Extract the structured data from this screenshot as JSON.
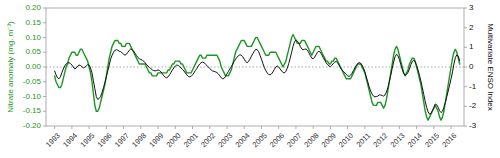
{
  "chart_data": {
    "type": "line",
    "ylabel": "Nitrate anomaly (mg. m⁻³)",
    "y2label": "Multivariate ENSO Index",
    "xlim": [
      1992.5,
      2016.75
    ],
    "xticks": [
      1993,
      1994,
      1995,
      1996,
      1997,
      1998,
      1999,
      2000,
      2001,
      2002,
      2003,
      2004,
      2005,
      2006,
      2007,
      2008,
      2009,
      2010,
      2011,
      2012,
      2013,
      2014,
      2015,
      2016
    ],
    "ylim": [
      -0.2,
      0.2
    ],
    "yticks": [
      {
        "value": -0.2,
        "label": "-0.20"
      },
      {
        "value": -0.15,
        "label": "-0.15"
      },
      {
        "value": -0.1,
        "label": "-0.10"
      },
      {
        "value": -0.05,
        "label": "-0.05"
      },
      {
        "value": 0.0,
        "label": "0.00"
      },
      {
        "value": 0.05,
        "label": "0.05"
      },
      {
        "value": 0.1,
        "label": "0.10"
      },
      {
        "value": 0.15,
        "label": "0.15"
      },
      {
        "value": 0.2,
        "label": "0.20"
      }
    ],
    "y2lim": [
      -3,
      3
    ],
    "y2ticks": [
      -3,
      -2,
      -1,
      0,
      1,
      2,
      3
    ],
    "grid": false,
    "hline": {
      "y": 0,
      "color": "#aaaaaa",
      "line_style": "dotted"
    },
    "x": [
      1993,
      1993.0833333333333,
      1993.1666666666667,
      1993.25,
      1993.3333333333333,
      1993.4166666666667,
      1993.5,
      1993.5833333333333,
      1993.6666666666667,
      1993.75,
      1993.8333333333333,
      1993.9166666666667,
      1994,
      1994.0833333333333,
      1994.1666666666667,
      1994.25,
      1994.3333333333333,
      1994.4166666666667,
      1994.5,
      1994.5833333333333,
      1994.6666666666667,
      1994.75,
      1994.8333333333333,
      1994.9166666666667,
      1995,
      1995.0833333333333,
      1995.1666666666667,
      1995.25,
      1995.3333333333333,
      1995.4166666666667,
      1995.5,
      1995.5833333333333,
      1995.6666666666667,
      1995.75,
      1995.8333333333333,
      1995.9166666666667,
      1996,
      1996.0833333333333,
      1996.1666666666667,
      1996.25,
      1996.3333333333333,
      1996.4166666666667,
      1996.5,
      1996.5833333333333,
      1996.6666666666667,
      1996.75,
      1996.8333333333333,
      1996.9166666666667,
      1997,
      1997.0833333333333,
      1997.1666666666667,
      1997.25,
      1997.3333333333333,
      1997.4166666666667,
      1997.5,
      1997.5833333333333,
      1997.6666666666667,
      1997.75,
      1997.8333333333333,
      1997.9166666666667,
      1998,
      1998.0833333333333,
      1998.1666666666667,
      1998.25,
      1998.3333333333333,
      1998.4166666666667,
      1998.5,
      1998.5833333333333,
      1998.6666666666667,
      1998.75,
      1998.8333333333333,
      1998.9166666666667,
      1999,
      1999.0833333333333,
      1999.1666666666667,
      1999.25,
      1999.3333333333333,
      1999.4166666666667,
      1999.5,
      1999.5833333333333,
      1999.6666666666667,
      1999.75,
      1999.8333333333333,
      1999.9166666666667,
      2000,
      2000.0833333333333,
      2000.1666666666667,
      2000.25,
      2000.3333333333333,
      2000.4166666666667,
      2000.5,
      2000.5833333333333,
      2000.6666666666667,
      2000.75,
      2000.8333333333333,
      2000.9166666666667,
      2001,
      2001.0833333333333,
      2001.1666666666667,
      2001.25,
      2001.3333333333333,
      2001.4166666666667,
      2001.5,
      2001.5833333333333,
      2001.6666666666667,
      2001.75,
      2001.8333333333333,
      2001.9166666666667,
      2002,
      2002.0833333333333,
      2002.1666666666667,
      2002.25,
      2002.3333333333333,
      2002.4166666666667,
      2002.5,
      2002.5833333333333,
      2002.6666666666667,
      2002.75,
      2002.8333333333333,
      2002.9166666666667,
      2003,
      2003.0833333333333,
      2003.1666666666667,
      2003.25,
      2003.3333333333333,
      2003.4166666666667,
      2003.5,
      2003.5833333333333,
      2003.6666666666667,
      2003.75,
      2003.8333333333333,
      2003.9166666666667,
      2004,
      2004.0833333333333,
      2004.1666666666667,
      2004.25,
      2004.3333333333333,
      2004.4166666666667,
      2004.5,
      2004.5833333333333,
      2004.6666666666667,
      2004.75,
      2004.8333333333333,
      2004.9166666666667,
      2005,
      2005.0833333333333,
      2005.1666666666667,
      2005.25,
      2005.3333333333333,
      2005.4166666666667,
      2005.5,
      2005.5833333333333,
      2005.6666666666667,
      2005.75,
      2005.8333333333333,
      2005.9166666666667,
      2006,
      2006.0833333333333,
      2006.1666666666667,
      2006.25,
      2006.3333333333333,
      2006.4166666666667,
      2006.5,
      2006.5833333333333,
      2006.6666666666667,
      2006.75,
      2006.8333333333333,
      2006.9166666666667,
      2007,
      2007.0833333333333,
      2007.1666666666667,
      2007.25,
      2007.3333333333333,
      2007.4166666666667,
      2007.5,
      2007.5833333333333,
      2007.6666666666667,
      2007.75,
      2007.8333333333333,
      2007.9166666666667,
      2008,
      2008.0833333333333,
      2008.1666666666667,
      2008.25,
      2008.3333333333333,
      2008.4166666666667,
      2008.5,
      2008.5833333333333,
      2008.6666666666667,
      2008.75,
      2008.8333333333333,
      2008.9166666666667,
      2009,
      2009.0833333333333,
      2009.1666666666667,
      2009.25,
      2009.3333333333333,
      2009.4166666666667,
      2009.5,
      2009.5833333333333,
      2009.6666666666667,
      2009.75,
      2009.8333333333333,
      2009.9166666666667,
      2010,
      2010.0833333333333,
      2010.1666666666667,
      2010.25,
      2010.3333333333333,
      2010.4166666666667,
      2010.5,
      2010.5833333333333,
      2010.6666666666667,
      2010.75,
      2010.8333333333333,
      2010.9166666666667,
      2011,
      2011.0833333333333,
      2011.1666666666667,
      2011.25,
      2011.3333333333333,
      2011.4166666666667,
      2011.5,
      2011.5833333333333,
      2011.6666666666667,
      2011.75,
      2011.8333333333333,
      2011.9166666666667,
      2012,
      2012.0833333333333,
      2012.1666666666667,
      2012.25,
      2012.3333333333333,
      2012.4166666666667,
      2012.5,
      2012.5833333333333,
      2012.6666666666667,
      2012.75,
      2012.8333333333333,
      2012.9166666666667,
      2013,
      2013.0833333333333,
      2013.1666666666667,
      2013.25,
      2013.3333333333333,
      2013.4166666666667,
      2013.5,
      2013.5833333333333,
      2013.6666666666667,
      2013.75,
      2013.8333333333333,
      2013.9166666666667,
      2014,
      2014.0833333333333,
      2014.1666666666667,
      2014.25,
      2014.3333333333333,
      2014.4166666666667,
      2014.5,
      2014.5833333333333,
      2014.6666666666667,
      2014.75,
      2014.8333333333333,
      2014.9166666666667,
      2015,
      2015.0833333333333,
      2015.1666666666667,
      2015.25,
      2015.3333333333333,
      2015.4166666666667,
      2015.5,
      2015.5833333333333,
      2015.6666666666667,
      2015.75,
      2015.8333333333333,
      2015.9166666666667,
      2016,
      2016.0833333333333,
      2016.1666666666667,
      2016.25,
      2016.3333333333333,
      2016.4166666666667,
      2016.5
    ],
    "series": [
      {
        "color": "#1a9622",
        "values": [
          -0.03,
          -0.05,
          -0.06,
          -0.07,
          -0.07,
          -0.06,
          -0.04,
          -0.02,
          0.0,
          0.01,
          0.03,
          0.04,
          0.05,
          0.05,
          0.05,
          0.04,
          0.04,
          0.05,
          0.06,
          0.06,
          0.05,
          0.04,
          0.03,
          0.02,
          0.0,
          -0.02,
          -0.05,
          -0.09,
          -0.13,
          -0.15,
          -0.15,
          -0.14,
          -0.12,
          -0.1,
          -0.08,
          -0.06,
          -0.03,
          0.0,
          0.03,
          0.05,
          0.07,
          0.08,
          0.09,
          0.09,
          0.09,
          0.08,
          0.08,
          0.07,
          0.07,
          0.07,
          0.08,
          0.08,
          0.08,
          0.07,
          0.06,
          0.05,
          0.04,
          0.03,
          0.02,
          0.01,
          0.01,
          0.01,
          0.01,
          0.01,
          0.0,
          -0.01,
          -0.02,
          -0.02,
          -0.03,
          -0.03,
          -0.03,
          -0.03,
          -0.02,
          -0.02,
          -0.02,
          -0.02,
          -0.02,
          -0.02,
          -0.02,
          -0.01,
          -0.01,
          0.0,
          0.01,
          0.01,
          0.02,
          0.02,
          0.02,
          0.02,
          0.01,
          0.01,
          0.0,
          -0.01,
          -0.02,
          -0.02,
          -0.02,
          -0.02,
          -0.01,
          0.0,
          0.01,
          0.02,
          0.03,
          0.04,
          0.04,
          0.03,
          0.03,
          0.03,
          0.04,
          0.04,
          0.04,
          0.04,
          0.04,
          0.04,
          0.04,
          0.04,
          0.03,
          0.02,
          0.0,
          -0.01,
          -0.02,
          -0.03,
          -0.03,
          -0.03,
          -0.02,
          -0.01,
          0.01,
          0.03,
          0.05,
          0.06,
          0.07,
          0.08,
          0.09,
          0.09,
          0.09,
          0.08,
          0.07,
          0.07,
          0.07,
          0.07,
          0.08,
          0.09,
          0.1,
          0.1,
          0.09,
          0.08,
          0.07,
          0.06,
          0.05,
          0.04,
          0.04,
          0.04,
          0.05,
          0.05,
          0.05,
          0.05,
          0.05,
          0.04,
          0.03,
          0.02,
          0.01,
          0.0,
          0.01,
          0.02,
          0.04,
          0.06,
          0.08,
          0.1,
          0.11,
          0.1,
          0.09,
          0.08,
          0.08,
          0.08,
          0.09,
          0.09,
          0.09,
          0.08,
          0.07,
          0.06,
          0.05,
          0.04,
          0.05,
          0.06,
          0.07,
          0.07,
          0.07,
          0.06,
          0.05,
          0.04,
          0.03,
          0.02,
          0.02,
          0.01,
          0.01,
          0.02,
          0.02,
          0.03,
          0.03,
          0.02,
          0.01,
          0.0,
          -0.01,
          -0.02,
          -0.03,
          -0.04,
          -0.04,
          -0.04,
          -0.04,
          -0.03,
          -0.02,
          -0.01,
          0.0,
          0.01,
          0.01,
          0.01,
          0.0,
          -0.01,
          -0.02,
          -0.04,
          -0.06,
          -0.08,
          -0.1,
          -0.12,
          -0.13,
          -0.13,
          -0.13,
          -0.12,
          -0.12,
          -0.12,
          -0.13,
          -0.14,
          -0.13,
          -0.11,
          -0.08,
          -0.05,
          -0.02,
          0.01,
          0.04,
          0.06,
          0.07,
          0.06,
          0.04,
          0.02,
          0.0,
          -0.02,
          -0.03,
          -0.02,
          -0.01,
          0.01,
          0.02,
          0.03,
          0.03,
          0.02,
          0.0,
          -0.02,
          -0.04,
          -0.06,
          -0.09,
          -0.12,
          -0.15,
          -0.17,
          -0.18,
          -0.17,
          -0.16,
          -0.15,
          -0.14,
          -0.13,
          -0.14,
          -0.15,
          -0.17,
          -0.18,
          -0.17,
          -0.15,
          -0.12,
          -0.09,
          -0.06,
          -0.03,
          0.0,
          0.03,
          0.05,
          0.06,
          0.05,
          0.03,
          0.01
        ]
      },
      {
        "color": "#111111",
        "axis": "y2",
        "values": [
          -0.2,
          -0.4,
          -0.55,
          -0.6,
          -0.5,
          -0.3,
          -0.1,
          0.05,
          0.15,
          0.2,
          0.22,
          0.18,
          0.1,
          0.0,
          -0.1,
          -0.05,
          0.05,
          0.1,
          0.08,
          0.02,
          -0.05,
          -0.02,
          0.05,
          0.12,
          0.1,
          -0.05,
          -0.3,
          -0.7,
          -1.1,
          -1.5,
          -1.65,
          -1.6,
          -1.5,
          -1.3,
          -1.05,
          -0.8,
          -0.5,
          -0.2,
          0.1,
          0.4,
          0.6,
          0.75,
          0.85,
          0.88,
          0.85,
          0.8,
          0.78,
          0.72,
          0.65,
          0.6,
          0.65,
          0.75,
          0.85,
          0.92,
          0.88,
          0.8,
          0.7,
          0.58,
          0.48,
          0.42,
          0.38,
          0.35,
          0.3,
          0.22,
          0.12,
          0.05,
          -0.02,
          -0.08,
          -0.15,
          -0.18,
          -0.2,
          -0.18,
          -0.15,
          -0.18,
          -0.25,
          -0.35,
          -0.45,
          -0.52,
          -0.55,
          -0.5,
          -0.4,
          -0.28,
          -0.15,
          -0.05,
          0.05,
          0.1,
          0.08,
          0.03,
          -0.05,
          -0.12,
          -0.2,
          -0.3,
          -0.4,
          -0.48,
          -0.5,
          -0.48,
          -0.4,
          -0.3,
          -0.18,
          -0.08,
          0.05,
          0.15,
          0.22,
          0.25,
          0.22,
          0.15,
          0.08,
          0.0,
          -0.08,
          -0.15,
          -0.2,
          -0.22,
          -0.25,
          -0.28,
          -0.35,
          -0.45,
          -0.55,
          -0.6,
          -0.58,
          -0.48,
          -0.35,
          -0.22,
          -0.1,
          0.02,
          0.15,
          0.28,
          0.4,
          0.5,
          0.58,
          0.62,
          0.6,
          0.52,
          0.4,
          0.28,
          0.22,
          0.28,
          0.4,
          0.55,
          0.68,
          0.8,
          0.9,
          0.88,
          0.78,
          0.6,
          0.4,
          0.18,
          -0.02,
          -0.18,
          -0.3,
          -0.38,
          -0.4,
          -0.35,
          -0.25,
          -0.12,
          0.0,
          0.05,
          0.0,
          -0.1,
          -0.2,
          -0.28,
          -0.3,
          -0.22,
          -0.05,
          0.18,
          0.45,
          0.75,
          1.05,
          1.28,
          1.38,
          1.32,
          1.2,
          1.05,
          0.92,
          0.88,
          0.9,
          0.92,
          0.85,
          0.72,
          0.58,
          0.45,
          0.42,
          0.5,
          0.62,
          0.75,
          0.8,
          0.75,
          0.62,
          0.48,
          0.35,
          0.22,
          0.12,
          0.05,
          0.02,
          0.08,
          0.18,
          0.25,
          0.28,
          0.22,
          0.1,
          -0.05,
          -0.15,
          -0.22,
          -0.3,
          -0.38,
          -0.45,
          -0.48,
          -0.42,
          -0.32,
          -0.18,
          -0.05,
          0.08,
          0.18,
          0.22,
          0.2,
          0.1,
          -0.05,
          -0.25,
          -0.5,
          -0.75,
          -1.02,
          -1.22,
          -1.38,
          -1.48,
          -1.52,
          -1.5,
          -1.48,
          -1.42,
          -1.42,
          -1.45,
          -1.48,
          -1.42,
          -1.28,
          -1.05,
          -0.75,
          -0.42,
          -0.08,
          0.25,
          0.52,
          0.65,
          0.58,
          0.38,
          0.12,
          -0.12,
          -0.32,
          -0.42,
          -0.38,
          -0.28,
          -0.1,
          0.12,
          0.28,
          0.35,
          0.25,
          0.08,
          -0.15,
          -0.42,
          -0.72,
          -1.05,
          -1.4,
          -1.75,
          -2.05,
          -2.28,
          -2.4,
          -2.35,
          -2.22,
          -2.05,
          -1.88,
          -1.92,
          -2.05,
          -2.22,
          -2.32,
          -2.25,
          -2.05,
          -1.8,
          -1.52,
          -1.22,
          -0.92,
          -0.6,
          -0.25,
          0.15,
          0.48,
          0.62,
          0.55,
          0.32
        ]
      }
    ]
  }
}
